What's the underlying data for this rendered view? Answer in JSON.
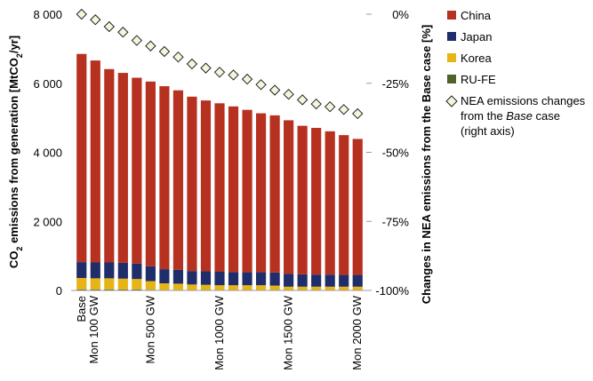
{
  "chart_data": {
    "type": "bar",
    "stacked": true,
    "categories": [
      "Base",
      "",
      "",
      "",
      "",
      "Mon 500 GW",
      "",
      "",
      "",
      "",
      "Mon 1000 GW",
      "",
      "",
      "",
      "",
      "Mon 1500 GW",
      "",
      "",
      "",
      "",
      "Mon 2000 GW"
    ],
    "category_ticks_extra": {
      "index": 0,
      "label": "Mon 100 GW"
    },
    "series": [
      {
        "name": "RU-FE",
        "color": "#4f6228",
        "values": [
          30,
          30,
          30,
          30,
          30,
          20,
          15,
          15,
          12,
          12,
          10,
          10,
          10,
          10,
          10,
          8,
          8,
          8,
          8,
          8,
          8
        ]
      },
      {
        "name": "Korea",
        "color": "#e7b416",
        "values": [
          330,
          320,
          320,
          310,
          300,
          250,
          190,
          180,
          160,
          150,
          140,
          140,
          140,
          140,
          130,
          100,
          100,
          100,
          100,
          100,
          100
        ]
      },
      {
        "name": "Japan",
        "color": "#1f2d6b",
        "values": [
          460,
          460,
          460,
          460,
          450,
          430,
          410,
          400,
          390,
          390,
          390,
          380,
          380,
          380,
          380,
          370,
          360,
          350,
          350,
          340,
          340
        ]
      },
      {
        "name": "China",
        "color": "#b73120",
        "values": [
          6030,
          5850,
          5600,
          5500,
          5380,
          5350,
          5300,
          5200,
          5050,
          4950,
          4880,
          4800,
          4700,
          4600,
          4550,
          4450,
          4300,
          4250,
          4150,
          4050,
          3940
        ]
      }
    ],
    "line_series": {
      "name": "NEA emissions changes from the Base case (right axis)",
      "marker": "diamond",
      "values": [
        0,
        -2,
        -4.5,
        -6.5,
        -9.5,
        -11.5,
        -13.5,
        -15.5,
        -18,
        -19.5,
        -21,
        -22,
        -23.5,
        -25.5,
        -27.5,
        -29,
        -31,
        -32.5,
        -33.5,
        -34.5,
        -36
      ]
    },
    "y_left": {
      "label": "CO2 emissions from generation [MtCO2/yr]",
      "label_parts": [
        "CO",
        "2",
        " emissions from generation [MtCO",
        "2",
        "/yr]"
      ],
      "ylim": [
        0,
        8000
      ],
      "ticks": [
        0,
        2000,
        4000,
        6000,
        8000
      ],
      "tick_labels": [
        "0",
        "2 000",
        "4 000",
        "6 000",
        "8 000"
      ]
    },
    "y_right": {
      "label": "Changes in NEA emissions from the Base case [%]",
      "ylim": [
        -100,
        0
      ],
      "ticks": [
        0,
        -25,
        -50,
        -75,
        -100
      ],
      "tick_labels": [
        "0%",
        "-25%",
        "-50%",
        "-75%",
        "-100%"
      ]
    },
    "legend": {
      "placement": "right",
      "entries": [
        {
          "label": "China",
          "color": "#b73120"
        },
        {
          "label": "Japan",
          "color": "#1f2d6b"
        },
        {
          "label": "Korea",
          "color": "#e7b416"
        },
        {
          "label": "RU-FE",
          "color": "#4f6228"
        }
      ],
      "line_entry_lines": [
        "NEA emissions changes",
        "from the ",
        "Base",
        " case",
        "(right axis)"
      ]
    },
    "grid": false
  }
}
